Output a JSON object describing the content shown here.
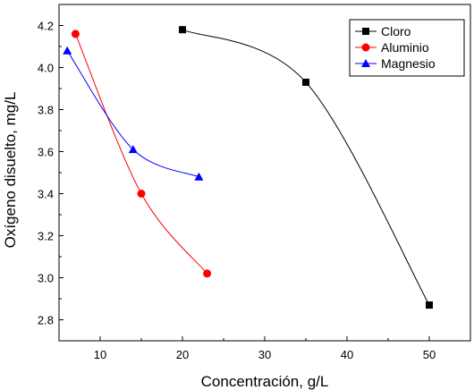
{
  "chart_data": {
    "type": "line",
    "title": "",
    "xlabel": "Concentración, g/L",
    "ylabel": "Oxígeno disuelto, mg/L",
    "xlim": [
      5,
      55
    ],
    "ylim": [
      2.7,
      4.3
    ],
    "xticks": [
      10,
      20,
      30,
      40,
      50
    ],
    "yticks": [
      2.8,
      3.0,
      3.2,
      3.4,
      3.6,
      3.8,
      4.0,
      4.2
    ],
    "grid": false,
    "legend_position": "top-right",
    "series": [
      {
        "name": "Cloro",
        "color": "#000000",
        "marker": "square",
        "points": [
          [
            20,
            4.18
          ],
          [
            35,
            3.93
          ],
          [
            50,
            2.87
          ]
        ]
      },
      {
        "name": "Aluminio",
        "color": "#ff0000",
        "marker": "circle",
        "points": [
          [
            7,
            4.16
          ],
          [
            15,
            3.4
          ],
          [
            23,
            3.02
          ]
        ]
      },
      {
        "name": "Magnesio",
        "color": "#0000ff",
        "marker": "triangle",
        "points": [
          [
            6,
            4.08
          ],
          [
            14,
            3.61
          ],
          [
            22,
            3.48
          ]
        ]
      }
    ]
  }
}
